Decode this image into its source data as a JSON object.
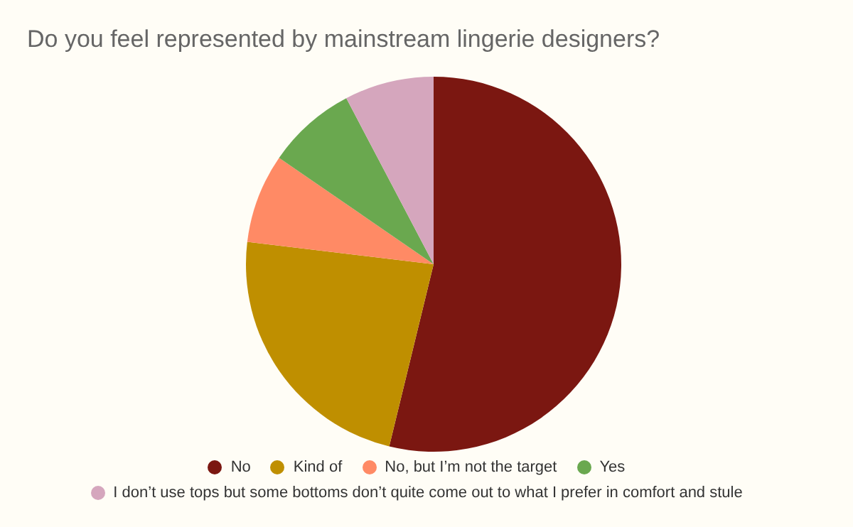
{
  "chart_data": {
    "type": "pie",
    "title": "Do you feel represented by mainstream lingerie designers?",
    "categories": [
      "No",
      "Kind of",
      "No, but I’m not the target",
      "Yes",
      "I don’t use tops but some bottoms don’t quite come out to what I prefer in comfort and stule"
    ],
    "values": [
      53.8,
      23.1,
      7.7,
      7.7,
      7.7
    ],
    "colors": [
      "#7b1711",
      "#bf8f00",
      "#ff8a65",
      "#6aa84f",
      "#d5a6bd"
    ],
    "legend": "bottom"
  }
}
